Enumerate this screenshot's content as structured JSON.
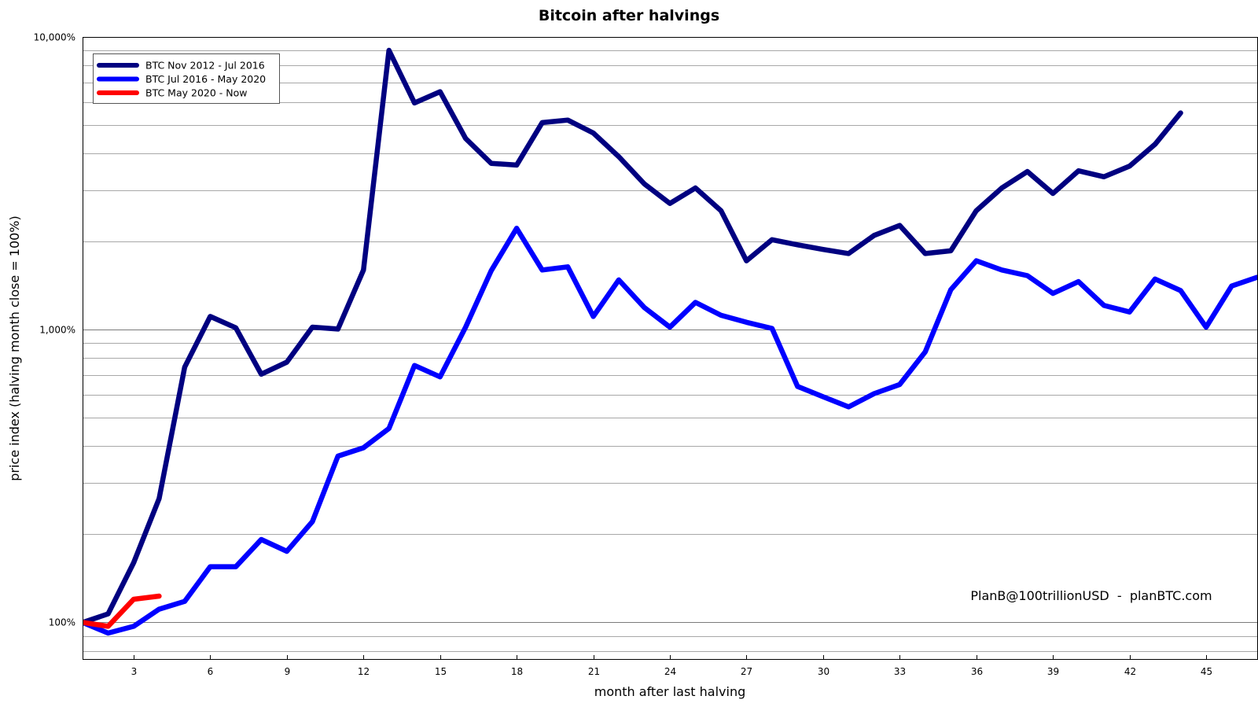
{
  "chart_data": {
    "type": "line",
    "title": "Bitcoin after halvings",
    "xlabel": "month after last halving",
    "ylabel": "price index (halving month close = 100%)",
    "y_scale": "log",
    "ylim": [
      75,
      10000
    ],
    "xlim": [
      1,
      47
    ],
    "x_ticks": [
      3,
      6,
      9,
      12,
      15,
      18,
      21,
      24,
      27,
      30,
      33,
      36,
      39,
      42,
      45
    ],
    "x_tick_labels": [
      "3",
      "6",
      "9",
      "12",
      "15",
      "18",
      "21",
      "24",
      "27",
      "30",
      "33",
      "36",
      "39",
      "42",
      "45"
    ],
    "y_ticks": [
      100,
      1000,
      10000
    ],
    "y_tick_labels": [
      "100%",
      "1,000%",
      "10,000%"
    ],
    "grid": true,
    "legend_position": "top-left",
    "annotation": "PlanB@100trillionUSD  -  planBTC.com",
    "series": [
      {
        "name": "BTC Nov 2012 - Jul 2016",
        "color": "#000080",
        "x": [
          1,
          2,
          3,
          4,
          5,
          6,
          7,
          8,
          9,
          10,
          11,
          12,
          13,
          14,
          15,
          16,
          17,
          18,
          19,
          20,
          21,
          22,
          23,
          24,
          25,
          26,
          27,
          28,
          29,
          30,
          31,
          32,
          33,
          34,
          35,
          36,
          37,
          38,
          39,
          40,
          41,
          42,
          43,
          44
        ],
        "values": [
          100,
          107,
          160,
          265,
          745,
          1110,
          1015,
          705,
          775,
          1020,
          1005,
          1600,
          9000,
          5950,
          6500,
          4500,
          3700,
          3650,
          5100,
          5200,
          4700,
          3900,
          3150,
          2700,
          3050,
          2550,
          1720,
          2030,
          1950,
          1880,
          1820,
          2100,
          2270,
          1820,
          1860,
          2550,
          3050,
          3470,
          2920,
          3490,
          3330,
          3620,
          4300,
          5500
        ]
      },
      {
        "name": "BTC Jul 2016 - May 2020",
        "color": "#0000ff",
        "x": [
          1,
          2,
          3,
          4,
          5,
          6,
          7,
          8,
          9,
          10,
          11,
          12,
          13,
          14,
          15,
          16,
          17,
          18,
          19,
          20,
          21,
          22,
          23,
          24,
          25,
          26,
          27,
          28,
          29,
          30,
          31,
          32,
          33,
          34,
          35,
          36,
          37,
          38,
          39,
          40,
          41,
          42,
          43,
          44,
          45,
          46,
          47
        ],
        "values": [
          100,
          92,
          97,
          111,
          118,
          155,
          155,
          192,
          175,
          221,
          370,
          395,
          460,
          755,
          690,
          1020,
          1590,
          2220,
          1600,
          1640,
          1110,
          1480,
          1190,
          1020,
          1240,
          1120,
          1060,
          1010,
          640,
          590,
          545,
          605,
          650,
          840,
          1370,
          1720,
          1600,
          1530,
          1330,
          1460,
          1210,
          1150,
          1490,
          1360,
          1020,
          1410,
          1510
        ]
      },
      {
        "name": "BTC May 2020 - Now",
        "color": "#ff0000",
        "x": [
          1,
          2,
          3,
          4
        ],
        "values": [
          100,
          97,
          120,
          123
        ]
      }
    ]
  }
}
